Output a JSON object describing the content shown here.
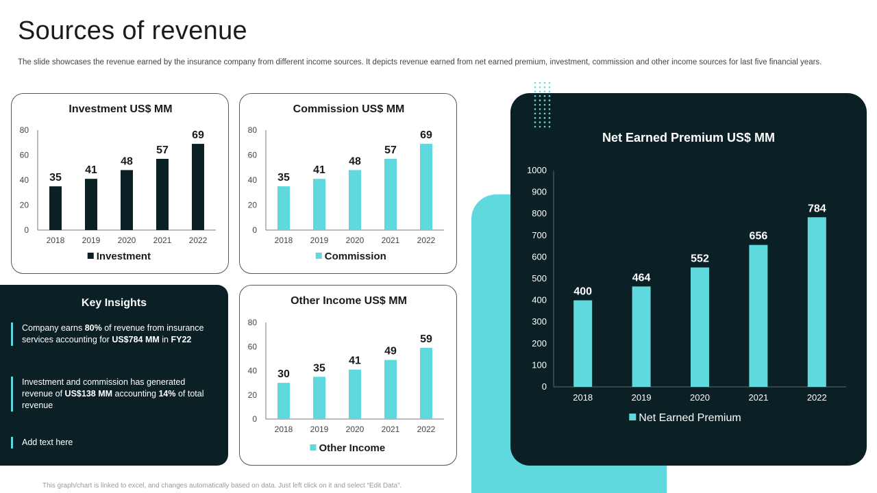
{
  "title": "Sources of revenue",
  "subtitle": "The slide showcases the revenue earned by the insurance company from different income sources. It depicts revenue earned from net earned premium, investment, commission and other income sources for last five financial years.",
  "footnote": "This graph/chart is linked to excel, and changes automatically based on data. Just left click on it and select “Edit Data”.",
  "colors": {
    "dark": "#0b2024",
    "accent": "#5fd9de",
    "axis": "#777777"
  },
  "insights": {
    "title": "Key Insights",
    "items": [
      {
        "p1": "Company earns ",
        "b1": "80%",
        "p2": " of revenue  from insurance services  accounting for ",
        "b2": "US$784 MM",
        "p3": " in ",
        "b3": "FY22",
        "p4": ""
      },
      {
        "p1": "Investment  and commission has generated revenue  of ",
        "b1": "US$138 MM",
        "p2": " accounting ",
        "b2": "14%",
        "p3": " of total revenue",
        "b3": "",
        "p4": ""
      },
      {
        "p1": "Add text here",
        "b1": "",
        "p2": "",
        "b2": "",
        "p3": "",
        "b3": "",
        "p4": ""
      }
    ]
  },
  "chart_data": [
    {
      "type": "bar",
      "title": "Investment US$ MM",
      "categories": [
        "2018",
        "2019",
        "2020",
        "2021",
        "2022"
      ],
      "series": [
        {
          "name": "Investment",
          "values": [
            35,
            41,
            48,
            57,
            69
          ]
        }
      ],
      "ylim": [
        0,
        80
      ],
      "yticks": [
        0,
        20,
        40,
        60,
        80
      ],
      "bar_color": "#0b2024",
      "legend": "bottom"
    },
    {
      "type": "bar",
      "title": "Commission US$ MM",
      "categories": [
        "2018",
        "2019",
        "2020",
        "2021",
        "2022"
      ],
      "series": [
        {
          "name": "Commission",
          "values": [
            35,
            41,
            48,
            57,
            69
          ]
        }
      ],
      "ylim": [
        0,
        80
      ],
      "yticks": [
        0,
        20,
        40,
        60,
        80
      ],
      "bar_color": "#5fd9de",
      "legend": "bottom"
    },
    {
      "type": "bar",
      "title": "Other Income US$ MM",
      "categories": [
        "2018",
        "2019",
        "2020",
        "2021",
        "2022"
      ],
      "series": [
        {
          "name": "Other Income",
          "values": [
            30,
            35,
            41,
            49,
            59
          ]
        }
      ],
      "ylim": [
        0,
        80
      ],
      "yticks": [
        0,
        20,
        40,
        60,
        80
      ],
      "bar_color": "#5fd9de",
      "legend": "bottom"
    },
    {
      "type": "bar",
      "title": "Net Earned Premium US$ MM",
      "categories": [
        "2018",
        "2019",
        "2020",
        "2021",
        "2022"
      ],
      "series": [
        {
          "name": "Net Earned Premium",
          "values": [
            400,
            464,
            552,
            656,
            784
          ]
        }
      ],
      "ylim": [
        0,
        1000
      ],
      "yticks": [
        0,
        100,
        200,
        300,
        400,
        500,
        600,
        700,
        800,
        900,
        1000
      ],
      "bar_color": "#5fd9de",
      "legend": "bottom"
    }
  ]
}
